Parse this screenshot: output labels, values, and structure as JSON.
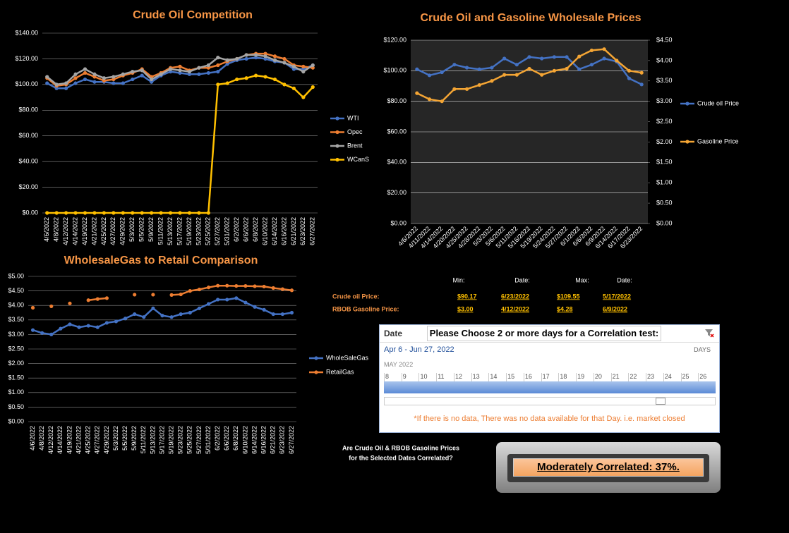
{
  "chart_data": [
    {
      "type": "line",
      "title": "Crude Oil Competition",
      "categories": [
        "4/6/2022",
        "4/8/2022",
        "4/12/2022",
        "4/14/2022",
        "4/19/2022",
        "4/21/2022",
        "4/25/2022",
        "4/27/2022",
        "4/29/2022",
        "5/3/2022",
        "5/5/2022",
        "5/9/2022",
        "5/11/2022",
        "5/13/2022",
        "5/17/2022",
        "5/19/2022",
        "5/23/2022",
        "5/25/2022",
        "5/27/2022",
        "5/31/2022",
        "6/2/2022",
        "6/6/2022",
        "6/8/2022",
        "6/10/2022",
        "6/14/2022",
        "6/16/2022",
        "6/21/2022",
        "6/23/2022",
        "6/27/2022"
      ],
      "series": [
        {
          "name": "WTI",
          "color": "#4472c4",
          "values": [
            101,
            97,
            97,
            101,
            104,
            102,
            102,
            101,
            101,
            104,
            107,
            102,
            107,
            110,
            109,
            108,
            108,
            109,
            110,
            116,
            119,
            120,
            121,
            120,
            118,
            117,
            112,
            112,
            115
          ]
        },
        {
          "name": "Opec",
          "color": "#ed7d31",
          "values": [
            105,
            99,
            100,
            105,
            109,
            106,
            103,
            104,
            107,
            109,
            112,
            106,
            109,
            113,
            114,
            111,
            113,
            113,
            115,
            118,
            120,
            123,
            124,
            124,
            122,
            120,
            115,
            114,
            113
          ]
        },
        {
          "name": "Brent",
          "color": "#a5a5a5",
          "values": [
            106,
            100,
            101,
            108,
            112,
            108,
            105,
            106,
            108,
            110,
            111,
            104,
            108,
            112,
            111,
            110,
            113,
            115,
            121,
            119,
            120,
            123,
            123,
            122,
            119,
            117,
            114,
            110,
            115
          ]
        },
        {
          "name": "WCanS",
          "color": "#ffc000",
          "values": [
            0,
            0,
            0,
            0,
            0,
            0,
            0,
            0,
            0,
            0,
            0,
            0,
            0,
            0,
            0,
            0,
            0,
            0,
            100,
            101,
            104,
            105,
            107,
            106,
            104,
            100,
            97,
            90,
            98
          ]
        }
      ],
      "ylim": [
        0,
        140
      ],
      "yticks": [
        {
          "value": 0,
          "label": "$0.00"
        },
        {
          "value": 20,
          "label": "$20.00"
        },
        {
          "value": 40,
          "label": "$40.00"
        },
        {
          "value": 60,
          "label": "$60.00"
        },
        {
          "value": 80,
          "label": "$80.00"
        },
        {
          "value": 100,
          "label": "$100.00"
        },
        {
          "value": 120,
          "label": "$120.00"
        },
        {
          "value": 140,
          "label": "$140.00"
        }
      ],
      "grid": true,
      "legend": "right"
    },
    {
      "type": "line",
      "title": "Crude Oil and Gasoline Wholesale Prices",
      "categories": [
        "4/6/2022",
        "4/11/2022",
        "4/14/2022",
        "4/20/2022",
        "4/25/2022",
        "4/28/2022",
        "5/3/2022",
        "5/6/2022",
        "5/11/2022",
        "5/16/2022",
        "5/19/2022",
        "5/24/2022",
        "5/27/2022",
        "6/1/2022",
        "6/6/2022",
        "6/9/2022",
        "6/14/2022",
        "6/17/2022",
        "6/23/2022"
      ],
      "series": [
        {
          "name": "Crude oil Price",
          "color": "#4472c4",
          "values": [
            101,
            97,
            99,
            104,
            102,
            101,
            102,
            108,
            104,
            109,
            108,
            109,
            109,
            101,
            104,
            108,
            106,
            95,
            91
          ]
        },
        {
          "name": "Gasoline Price",
          "color": "#f4a534",
          "axis": "y2",
          "values": [
            3.2,
            3.05,
            3.0,
            3.3,
            3.3,
            3.4,
            3.5,
            3.65,
            3.65,
            3.8,
            3.65,
            3.75,
            3.8,
            4.1,
            4.25,
            4.28,
            4.0,
            3.75,
            3.7
          ]
        }
      ],
      "ylim": [
        0,
        120
      ],
      "yticks": [
        {
          "value": 0,
          "label": "$0.00"
        },
        {
          "value": 20,
          "label": "$20.00"
        },
        {
          "value": 40,
          "label": "$40.00"
        },
        {
          "value": 60,
          "label": "$60.00"
        },
        {
          "value": 80,
          "label": "$80.00"
        },
        {
          "value": 100,
          "label": "$100.00"
        },
        {
          "value": 120,
          "label": "$120.00"
        }
      ],
      "y2lim": [
        0,
        4.5
      ],
      "y2ticks": [
        {
          "value": 0,
          "label": "$0.00"
        },
        {
          "value": 0.5,
          "label": "$0.50"
        },
        {
          "value": 1,
          "label": "$1.00"
        },
        {
          "value": 1.5,
          "label": "$1.50"
        },
        {
          "value": 2,
          "label": "$2.00"
        },
        {
          "value": 2.5,
          "label": "$2.50"
        },
        {
          "value": 3,
          "label": "$3.00"
        },
        {
          "value": 3.5,
          "label": "$3.50"
        },
        {
          "value": 4,
          "label": "$4.00"
        },
        {
          "value": 4.5,
          "label": "$4.50"
        }
      ],
      "grid": true,
      "legend": "right",
      "plot_color": "#262626"
    },
    {
      "type": "line",
      "title": "WholesaleGas to Retail Comparison",
      "categories": [
        "4/6/2022",
        "4/8/2022",
        "4/12/2022",
        "4/14/2022",
        "4/19/2022",
        "4/21/2022",
        "4/25/2022",
        "4/27/2022",
        "4/29/2022",
        "5/3/2022",
        "5/5/2022",
        "5/9/2022",
        "5/11/2022",
        "5/13/2022",
        "5/17/2022",
        "5/19/2022",
        "5/23/2022",
        "5/25/2022",
        "5/27/2022",
        "5/31/2022",
        "6/2/2022",
        "6/6/2022",
        "6/8/2022",
        "6/10/2022",
        "6/14/2022",
        "6/16/2022",
        "6/21/2022",
        "6/23/2022",
        "6/27/2022"
      ],
      "series": [
        {
          "name": "WholeSaleGas",
          "color": "#4472c4",
          "values": [
            3.15,
            3.05,
            3.0,
            3.2,
            3.35,
            3.25,
            3.3,
            3.25,
            3.4,
            3.45,
            3.55,
            3.7,
            3.6,
            3.9,
            3.65,
            3.6,
            3.7,
            3.75,
            3.9,
            4.05,
            4.2,
            4.2,
            4.25,
            4.1,
            3.95,
            3.85,
            3.7,
            3.7,
            3.75
          ]
        },
        {
          "name": "RetailGas",
          "color": "#ed7d31",
          "values": [
            3.92,
            null,
            3.97,
            null,
            4.07,
            null,
            4.18,
            4.22,
            4.25,
            null,
            null,
            4.37,
            null,
            4.37,
            null,
            4.36,
            4.38,
            4.5,
            4.55,
            4.62,
            4.68,
            4.68,
            4.67,
            4.67,
            4.66,
            4.65,
            4.6,
            4.56,
            4.52
          ]
        }
      ],
      "ylim": [
        0,
        5
      ],
      "yticks": [
        {
          "value": 0,
          "label": "$0.00"
        },
        {
          "value": 0.5,
          "label": "$0.50"
        },
        {
          "value": 1,
          "label": "$1.00"
        },
        {
          "value": 1.5,
          "label": "$1.50"
        },
        {
          "value": 2,
          "label": "$2.00"
        },
        {
          "value": 2.5,
          "label": "$2.50"
        },
        {
          "value": 3,
          "label": "$3.00"
        },
        {
          "value": 3.5,
          "label": "$3.50"
        },
        {
          "value": 4,
          "label": "$4.00"
        },
        {
          "value": 4.5,
          "label": "$4.50"
        },
        {
          "value": 5,
          "label": "$5.00"
        }
      ],
      "grid": true,
      "legend": "right"
    }
  ],
  "stats": {
    "headers": [
      "Min:",
      "Date:",
      "Max:",
      "Date:"
    ],
    "rows": [
      [
        "Crude oil Price:",
        "$90.17",
        "6/23/2022",
        "$109.55",
        "5/17/2022"
      ],
      [
        "RBOB Gasoline Price:",
        "$3.00",
        "4/12/2022",
        "$4.28",
        "6/9/2022"
      ]
    ]
  },
  "slicer": {
    "field": "Date",
    "caption": "Please Choose 2 or more days for a Correlation test:",
    "range": "Apr 6 - Jun 27, 2022",
    "level": "DAYS",
    "month": "MAY 2022",
    "days": [
      8,
      9,
      10,
      11,
      12,
      13,
      14,
      15,
      16,
      17,
      18,
      19,
      20,
      21,
      22,
      23,
      24,
      25,
      26
    ],
    "note": "*If there is no data, There was no data available for that Day. i.e. market closed"
  },
  "correlation": {
    "question": [
      "Are Crude Oil & RBOB Gasoline Prices",
      "for the Selected Dates Correlated?"
    ],
    "result": "Moderately Correlated: 37%."
  }
}
